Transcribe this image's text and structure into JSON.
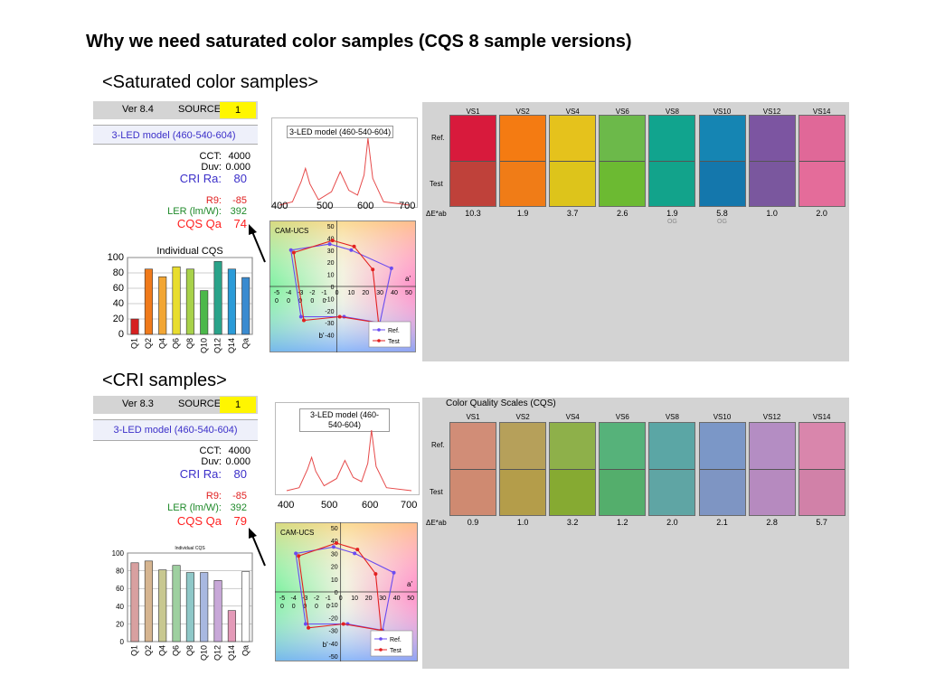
{
  "slide": {
    "title": "Why we need saturated color samples (CQS 8 sample versions)",
    "section_saturated": "<Saturated color samples>",
    "section_cri": "<CRI samples>"
  },
  "panels": [
    {
      "version": "Ver 8.4",
      "source_label": "SOURCE",
      "source_value": "1",
      "model": "3-LED model (460-540-604)",
      "cct_label": "CCT:",
      "cct": "4000",
      "duv_label": "Duv:",
      "duv": "0.000",
      "cri_label": "CRI Ra:",
      "cri": "80",
      "r9_label": "R9:",
      "r9": "-85",
      "ler_label": "LER (lm/W):",
      "ler": "392",
      "cqs_label": "CQS Qa",
      "cqs": "74",
      "spectrum_title": "3-LED model (460-540-604)",
      "spectrum_ticks": [
        "400",
        "500",
        "600",
        "700"
      ],
      "cam_title": "CAM-UCS",
      "cam_y_ticks": [
        "50",
        "40",
        "30",
        "20",
        "10",
        "0",
        "-10",
        "-20",
        "-30",
        "-40"
      ],
      "cam_x_ticks": [
        "-5",
        "-4",
        "-3",
        "-2",
        "-1",
        "0",
        "10",
        "20",
        "30",
        "40",
        "50"
      ],
      "cam_x_ticks2": [
        "0",
        "0",
        "0",
        "0",
        "0"
      ],
      "cam_a_label": "a'",
      "cam_b_label": "b'",
      "legend_ref": "Ref.",
      "legend_test": "Test",
      "bar_title": "Individual CQS",
      "bar_yticks": [
        "100",
        "80",
        "60",
        "40",
        "20",
        "0"
      ],
      "bar_cats": [
        "Q1",
        "Q2",
        "Q4",
        "Q6",
        "Q8",
        "Q10",
        "Q12",
        "Q14",
        "Qa"
      ],
      "cqs_title": "",
      "samples": [
        "VS1",
        "VS2",
        "VS4",
        "VS6",
        "VS8",
        "VS10",
        "VS12",
        "VS14"
      ],
      "ref_row": "Ref.",
      "test_row": "Test",
      "de_label": "ΔE*ab",
      "de_values": [
        "10.3",
        "1.9",
        "3.7",
        "2.6",
        "1.9",
        "5.8",
        "1.0",
        "2.0"
      ],
      "og_labels": [
        "",
        "",
        "",
        "",
        "OG",
        "OG",
        "",
        ""
      ],
      "ref_colors": [
        "#d81a3c",
        "#f47b12",
        "#e5c21c",
        "#6cb94a",
        "#11a48e",
        "#1585b3",
        "#7c55a1",
        "#e06898"
      ],
      "test_colors": [
        "#bf413a",
        "#f07c17",
        "#ddc41b",
        "#6cba32",
        "#12a38b",
        "#1477ac",
        "#7a579e",
        "#e46c9a"
      ]
    },
    {
      "version": "Ver 8.3",
      "source_label": "SOURCE",
      "source_value": "1",
      "model": "3-LED model (460-540-604)",
      "cct_label": "CCT:",
      "cct": "4000",
      "duv_label": "Duv:",
      "duv": "0.000",
      "cri_label": "CRI Ra:",
      "cri": "80",
      "r9_label": "R9:",
      "r9": "-85",
      "ler_label": "LER (lm/W):",
      "ler": "392",
      "cqs_label": "CQS Qa",
      "cqs": "79",
      "spectrum_title": "3-LED model (460-540-604)",
      "spectrum_ticks": [
        "400",
        "500",
        "600",
        "700"
      ],
      "cam_title": "CAM-UCS",
      "cam_y_ticks": [
        "50",
        "40",
        "30",
        "20",
        "10",
        "0",
        "-10",
        "-20",
        "-30",
        "-40",
        "-50"
      ],
      "cam_x_ticks": [
        "-5",
        "-4",
        "-3",
        "-2",
        "-1",
        "0",
        "10",
        "20",
        "30",
        "40",
        "50"
      ],
      "cam_x_ticks2": [
        "0",
        "0",
        "0",
        "0",
        "0"
      ],
      "cam_a_label": "a'",
      "cam_b_label": "b'",
      "legend_ref": "Ref.",
      "legend_test": "Test",
      "bar_title": "Individual CQS",
      "bar_yticks": [
        "100",
        "80",
        "60",
        "40",
        "20",
        "0"
      ],
      "bar_cats": [
        "Q1",
        "Q2",
        "Q4",
        "Q6",
        "Q8",
        "Q10",
        "Q12",
        "Q14",
        "Qa"
      ],
      "cqs_title": "Color Quality Scales (CQS)",
      "samples": [
        "VS1",
        "VS2",
        "VS4",
        "VS6",
        "VS8",
        "VS10",
        "VS12",
        "VS14"
      ],
      "ref_row": "Ref.",
      "test_row": "Test",
      "de_label": "ΔE*ab",
      "de_values": [
        "0.9",
        "1.0",
        "3.2",
        "1.2",
        "2.0",
        "2.1",
        "2.8",
        "5.7"
      ],
      "og_labels": [
        "",
        "",
        "",
        "",
        "",
        "",
        "",
        ""
      ],
      "ref_colors": [
        "#d18d77",
        "#b6a05a",
        "#8eb04a",
        "#56b27a",
        "#5ba6a5",
        "#7b97c7",
        "#b48dc3",
        "#d986ac"
      ],
      "test_colors": [
        "#cf8a71",
        "#b49d4a",
        "#86aa32",
        "#54ae6c",
        "#5fa5a4",
        "#7e95c3",
        "#b68abf",
        "#d181a8"
      ]
    }
  ],
  "chart_data": [
    {
      "type": "bar",
      "title": "Individual CQS",
      "categories": [
        "Q1",
        "Q2",
        "Q4",
        "Q6",
        "Q8",
        "Q10",
        "Q12",
        "Q14",
        "Qa"
      ],
      "values": [
        20,
        85,
        75,
        88,
        85,
        57,
        95,
        85,
        74
      ],
      "colors": [
        "#d62020",
        "#f07a1a",
        "#f2a634",
        "#e8dd2f",
        "#a8d24a",
        "#4cb84a",
        "#2aa38a",
        "#2a9bd8",
        "#3a8bd0"
      ],
      "ylim": [
        0,
        100
      ]
    },
    {
      "type": "bar",
      "title": "Individual CQS",
      "categories": [
        "Q1",
        "Q2",
        "Q4",
        "Q6",
        "Q8",
        "Q10",
        "Q12",
        "Q14",
        "Qa"
      ],
      "values": [
        89,
        91,
        81,
        86,
        78,
        78,
        69,
        35,
        79
      ],
      "colors": [
        "#d8a0a0",
        "#d6b590",
        "#c8c890",
        "#9ed0a0",
        "#8fc8c8",
        "#a8b8e0",
        "#c8a8d8",
        "#e49ab8",
        "#ffffff"
      ],
      "ylim": [
        0,
        100
      ]
    },
    {
      "type": "line",
      "title": "3-LED model (460-540-604)",
      "x": [
        400,
        430,
        450,
        460,
        470,
        490,
        520,
        540,
        560,
        580,
        595,
        604,
        615,
        640,
        700
      ],
      "y": [
        0,
        5,
        35,
        55,
        32,
        8,
        20,
        50,
        22,
        15,
        45,
        100,
        40,
        5,
        0
      ],
      "xlim": [
        400,
        700
      ]
    },
    {
      "type": "scatter",
      "title": "CAM-UCS",
      "xlabel": "a'",
      "ylabel": "b'",
      "series": [
        {
          "name": "Ref.",
          "x": [
            -5,
            10,
            38,
            30,
            5,
            -25,
            -32
          ],
          "y": [
            35,
            30,
            15,
            -30,
            -25,
            -25,
            30
          ]
        },
        {
          "name": "Test",
          "x": [
            -3,
            12,
            25,
            29,
            2,
            -23,
            -30
          ],
          "y": [
            38,
            33,
            14,
            -30,
            -25,
            -28,
            28
          ]
        }
      ]
    }
  ]
}
